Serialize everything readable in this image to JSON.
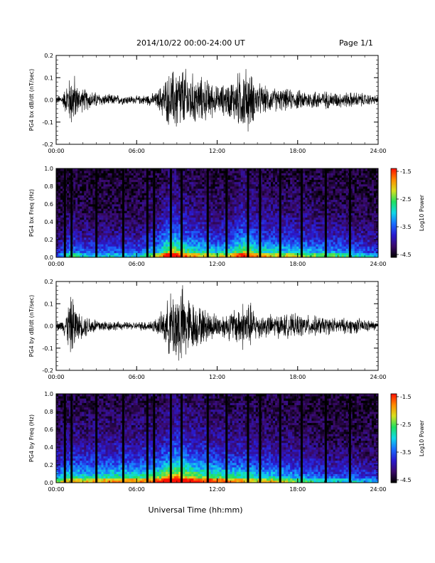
{
  "header": {
    "title": "2014/10/22  00:00-24:00 UT",
    "page": "Page 1/1"
  },
  "xlabel": "Universal Time (hh:mm)",
  "colorbar": {
    "label": "Log10 Power",
    "ticks": [
      "-1.5",
      "-2.5",
      "-3.5",
      "-4.5"
    ],
    "range": [
      -4.5,
      -1.5
    ],
    "colors": [
      "#000000",
      "#3a0a6a",
      "#2a1ad0",
      "#1a6cff",
      "#10d8e8",
      "#20e060",
      "#d8e020",
      "#ff8a00",
      "#ff1000"
    ]
  },
  "chart_data": [
    {
      "type": "line",
      "ylabel": "PG4 bx dB/dt (nT/sec)",
      "xlim": [
        "00:00",
        "24:00"
      ],
      "xticks": [
        "00:00",
        "06:00",
        "12:00",
        "18:00",
        "24:00"
      ],
      "ylim": [
        -0.2,
        0.2
      ],
      "yticks": [
        "-0.2",
        "-0.1",
        "0.0",
        "0.1",
        "0.2"
      ],
      "series": [
        {
          "color": "#000000",
          "envelope": {
            "x_hours": [
              0,
              0.5,
              0.8,
              1.0,
              1.3,
              1.6,
              2.5,
              3.5,
              5.0,
              6.0,
              7.0,
              7.5,
              8.0,
              8.6,
              9.0,
              9.5,
              10.0,
              10.7,
              11.5,
              12.0,
              12.8,
              13.3,
              13.8,
              14.3,
              14.8,
              15.5,
              16.5,
              18.0,
              19.5,
              21.0,
              22.5,
              24.0
            ],
            "amplitude": [
              0.02,
              0.03,
              0.09,
              0.12,
              0.15,
              0.07,
              0.05,
              0.03,
              0.025,
              0.02,
              0.03,
              0.04,
              0.1,
              0.15,
              0.18,
              0.17,
              0.14,
              0.12,
              0.1,
              0.07,
              0.09,
              0.12,
              0.16,
              0.17,
              0.1,
              0.07,
              0.06,
              0.05,
              0.05,
              0.04,
              0.04,
              0.02
            ]
          }
        }
      ]
    },
    {
      "type": "heatmap",
      "ylabel": "PG4 bx Freq (Hz)",
      "xlim": [
        "00:00",
        "24:00"
      ],
      "xticks": [
        "00:00",
        "06:00",
        "12:00",
        "18:00",
        "24:00"
      ],
      "ylim": [
        0.0,
        1.0
      ],
      "yticks": [
        "0.0",
        "0.2",
        "0.4",
        "0.6",
        "0.8",
        "1.0"
      ],
      "zlim": [
        -4.5,
        -1.5
      ],
      "gaps_hours": [
        0.65,
        1.15,
        3.0,
        5.0,
        6.8,
        7.3,
        8.55,
        9.35,
        11.3,
        12.7,
        14.3,
        15.2,
        16.7,
        18.3,
        20.1,
        21.9
      ],
      "activity": {
        "x_hours": [
          0,
          1,
          2,
          4,
          6,
          7.5,
          8.5,
          9,
          10,
          11,
          12,
          13,
          14,
          15,
          16,
          18,
          20,
          22,
          24
        ],
        "level": [
          0.2,
          0.45,
          0.35,
          0.35,
          0.35,
          0.5,
          0.8,
          0.75,
          0.6,
          0.55,
          0.5,
          0.55,
          0.75,
          0.6,
          0.55,
          0.5,
          0.45,
          0.4,
          0.3
        ]
      }
    },
    {
      "type": "line",
      "ylabel": "PG4 by dB/dt (nT/sec)",
      "xlim": [
        "00:00",
        "24:00"
      ],
      "xticks": [
        "00:00",
        "06:00",
        "12:00",
        "18:00",
        "24:00"
      ],
      "ylim": [
        -0.2,
        0.2
      ],
      "yticks": [
        "-0.2",
        "-0.1",
        "0.0",
        "0.1",
        "0.2"
      ],
      "series": [
        {
          "color": "#000000",
          "envelope": {
            "x_hours": [
              0,
              0.5,
              0.8,
              1.0,
              1.3,
              1.6,
              2.5,
              3.5,
              5.0,
              6.0,
              7.0,
              7.5,
              8.0,
              8.6,
              9.0,
              9.5,
              10.0,
              10.7,
              11.5,
              12.0,
              12.8,
              13.3,
              13.8,
              14.3,
              14.8,
              15.5,
              16.5,
              18.0,
              19.5,
              21.0,
              22.5,
              24.0
            ],
            "amplitude": [
              0.02,
              0.03,
              0.09,
              0.14,
              0.16,
              0.07,
              0.05,
              0.03,
              0.02,
              0.02,
              0.03,
              0.04,
              0.08,
              0.18,
              0.22,
              0.2,
              0.14,
              0.1,
              0.08,
              0.06,
              0.07,
              0.09,
              0.12,
              0.14,
              0.08,
              0.06,
              0.06,
              0.06,
              0.05,
              0.04,
              0.04,
              0.02
            ]
          }
        }
      ]
    },
    {
      "type": "heatmap",
      "ylabel": "PG4 by Freq (Hz)",
      "xlim": [
        "00:00",
        "24:00"
      ],
      "xticks": [
        "00:00",
        "06:00",
        "12:00",
        "18:00",
        "24:00"
      ],
      "ylim": [
        0.0,
        1.0
      ],
      "yticks": [
        "0.0",
        "0.2",
        "0.4",
        "0.6",
        "0.8",
        "1.0"
      ],
      "zlim": [
        -4.5,
        -1.5
      ],
      "gaps_hours": [
        0.65,
        1.15,
        3.0,
        5.0,
        6.8,
        7.3,
        8.55,
        9.35,
        11.3,
        12.7,
        14.3,
        15.2,
        16.7,
        18.3,
        20.1,
        21.9
      ],
      "activity": {
        "x_hours": [
          0,
          1,
          2,
          4,
          6,
          7.5,
          8.5,
          9,
          10,
          11,
          12,
          13,
          14,
          15,
          16,
          18,
          20,
          22,
          24
        ],
        "level": [
          0.45,
          0.6,
          0.55,
          0.6,
          0.6,
          0.65,
          0.85,
          0.9,
          0.75,
          0.7,
          0.65,
          0.6,
          0.6,
          0.55,
          0.55,
          0.45,
          0.35,
          0.35,
          0.3
        ]
      }
    }
  ]
}
